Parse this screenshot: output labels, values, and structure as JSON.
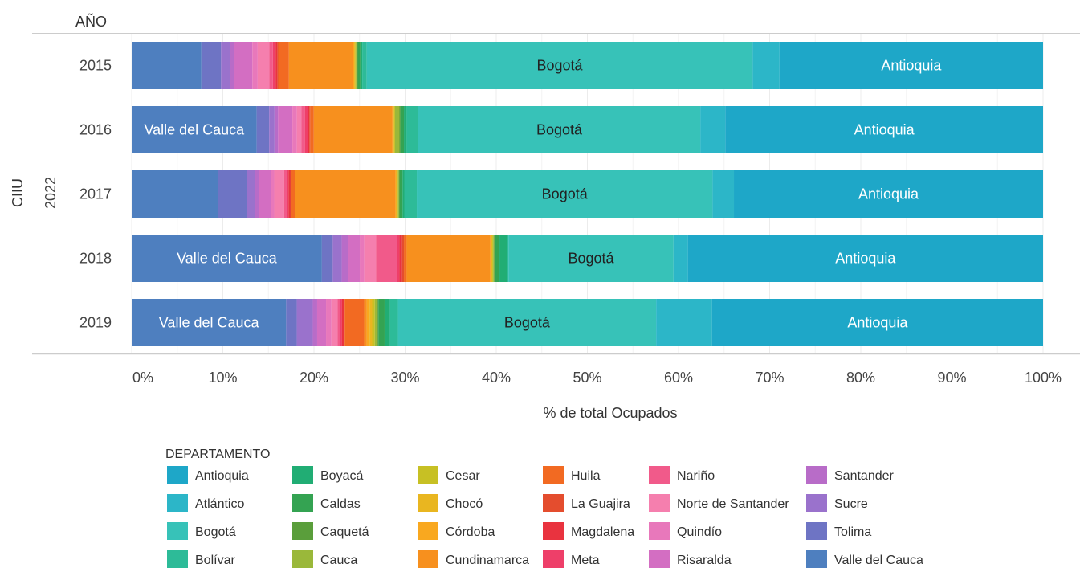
{
  "chart_data": {
    "type": "bar",
    "orientation": "horizontal",
    "stacked": "percent",
    "column_header": "AÑO",
    "ylabel": "CIIU",
    "group_label": "2022",
    "xlabel": "% de total Ocupados",
    "xlim": [
      0,
      100
    ],
    "x_ticks": [
      "0%",
      "10%",
      "20%",
      "30%",
      "40%",
      "50%",
      "60%",
      "70%",
      "80%",
      "90%",
      "100%"
    ],
    "categories": [
      "2015",
      "2016",
      "2017",
      "2018",
      "2019"
    ],
    "grid": true,
    "legend_title": "DEPARTAMENTO",
    "legend_position": "bottom",
    "series": [
      {
        "name": "Valle del Cauca",
        "color": "#4e7fbf",
        "values": [
          7.8,
          14.0,
          9.7,
          21.1,
          17.4
        ]
      },
      {
        "name": "Tolima",
        "color": "#6e74c4",
        "values": [
          2.2,
          1.4,
          3.2,
          1.2,
          1.2
        ]
      },
      {
        "name": "Sucre",
        "color": "#9a72cc",
        "values": [
          1.0,
          0.6,
          0.9,
          1.0,
          1.8
        ]
      },
      {
        "name": "Santander",
        "color": "#b86cc8",
        "values": [
          0.5,
          0.4,
          0.5,
          0.7,
          0.5
        ]
      },
      {
        "name": "Risaralda",
        "color": "#d36ec2",
        "values": [
          2.0,
          1.6,
          1.3,
          1.3,
          1.0
        ]
      },
      {
        "name": "Quindío",
        "color": "#e878bb",
        "values": [
          0.6,
          0.5,
          0.4,
          0.5,
          0.6
        ]
      },
      {
        "name": "Norte de Santander",
        "color": "#f57fae",
        "values": [
          1.3,
          0.5,
          1.1,
          1.3,
          0.7
        ]
      },
      {
        "name": "Nariño",
        "color": "#f15a8a",
        "values": [
          0.4,
          0.4,
          0.3,
          2.3,
          0.3
        ]
      },
      {
        "name": "Meta",
        "color": "#ee3f69",
        "values": [
          0.3,
          0.3,
          0.2,
          0.3,
          0.2
        ]
      },
      {
        "name": "Magdalena",
        "color": "#e9333f",
        "values": [
          0.2,
          0.2,
          0.2,
          0.3,
          0.2
        ]
      },
      {
        "name": "La Guajira",
        "color": "#e44d2e",
        "values": [
          0.1,
          0.1,
          0.1,
          0.2,
          0.1
        ]
      },
      {
        "name": "Huila",
        "color": "#f26a22",
        "values": [
          1.2,
          0.4,
          0.4,
          0.3,
          2.2
        ]
      },
      {
        "name": "Cundinamarca",
        "color": "#f7901e",
        "values": [
          7.2,
          8.8,
          11.3,
          9.3,
          0.3
        ]
      },
      {
        "name": "Córdoba",
        "color": "#f9a81f",
        "values": [
          0.1,
          0.1,
          0.1,
          0.1,
          0.3
        ]
      },
      {
        "name": "Chocó",
        "color": "#e9b620",
        "values": [
          0.1,
          0.1,
          0.1,
          0.1,
          0.3
        ]
      },
      {
        "name": "Cesar",
        "color": "#c7c024",
        "values": [
          0.1,
          0.1,
          0.1,
          0.1,
          0.3
        ]
      },
      {
        "name": "Cauca",
        "color": "#9ab83a",
        "values": [
          0.1,
          0.5,
          0.1,
          0.1,
          0.3
        ]
      },
      {
        "name": "Caquetá",
        "color": "#5a9e3b",
        "values": [
          0.1,
          0.1,
          0.1,
          0.1,
          0.1
        ]
      },
      {
        "name": "Caldas",
        "color": "#34a352",
        "values": [
          0.3,
          0.4,
          0.3,
          0.5,
          0.7
        ]
      },
      {
        "name": "Boyacá",
        "color": "#21ad74",
        "values": [
          0.2,
          0.3,
          0.2,
          0.8,
          0.6
        ]
      },
      {
        "name": "Bolívar",
        "color": "#2dbb98",
        "values": [
          0.5,
          1.3,
          1.4,
          0.2,
          0.9
        ]
      },
      {
        "name": "Bogotá",
        "color": "#37c2b8",
        "values": [
          43.2,
          31.6,
          33.2,
          18.3,
          29.1
        ]
      },
      {
        "name": "Atlántico",
        "color": "#2cb6c8",
        "values": [
          3.0,
          2.8,
          2.4,
          1.6,
          6.3
        ]
      },
      {
        "name": "Antioquia",
        "color": "#1ea7c8",
        "values": [
          29.5,
          35.6,
          34.7,
          39.4,
          37.3
        ]
      }
    ],
    "bar_labels": [
      {
        "category": "2015",
        "series": "Bogotá",
        "text": "Bogotá",
        "text_color": "#222222"
      },
      {
        "category": "2015",
        "series": "Antioquia",
        "text": "Antioquia",
        "text_color": "#ffffff"
      },
      {
        "category": "2016",
        "series": "Valle del Cauca",
        "text": "Valle del Cauca",
        "text_color": "#ffffff"
      },
      {
        "category": "2016",
        "series": "Bogotá",
        "text": "Bogotá",
        "text_color": "#222222"
      },
      {
        "category": "2016",
        "series": "Antioquia",
        "text": "Antioquia",
        "text_color": "#ffffff"
      },
      {
        "category": "2017",
        "series": "Bogotá",
        "text": "Bogotá",
        "text_color": "#222222"
      },
      {
        "category": "2017",
        "series": "Antioquia",
        "text": "Antioquia",
        "text_color": "#ffffff"
      },
      {
        "category": "2018",
        "series": "Valle del Cauca",
        "text": "Valle del Cauca",
        "text_color": "#ffffff"
      },
      {
        "category": "2018",
        "series": "Bogotá",
        "text": "Bogotá",
        "text_color": "#222222"
      },
      {
        "category": "2018",
        "series": "Antioquia",
        "text": "Antioquia",
        "text_color": "#ffffff"
      },
      {
        "category": "2019",
        "series": "Valle del Cauca",
        "text": "Valle del Cauca",
        "text_color": "#ffffff"
      },
      {
        "category": "2019",
        "series": "Bogotá",
        "text": "Bogotá",
        "text_color": "#222222"
      },
      {
        "category": "2019",
        "series": "Antioquia",
        "text": "Antioquia",
        "text_color": "#ffffff"
      }
    ],
    "legend_order": [
      "Antioquia",
      "Atlántico",
      "Bogotá",
      "Bolívar",
      "Boyacá",
      "Caldas",
      "Caquetá",
      "Cauca",
      "Cesar",
      "Chocó",
      "Córdoba",
      "Cundinamarca",
      "Huila",
      "La Guajira",
      "Magdalena",
      "Meta",
      "Nariño",
      "Norte de Santander",
      "Quindío",
      "Risaralda",
      "Santander",
      "Sucre",
      "Tolima",
      "Valle del Cauca"
    ]
  }
}
